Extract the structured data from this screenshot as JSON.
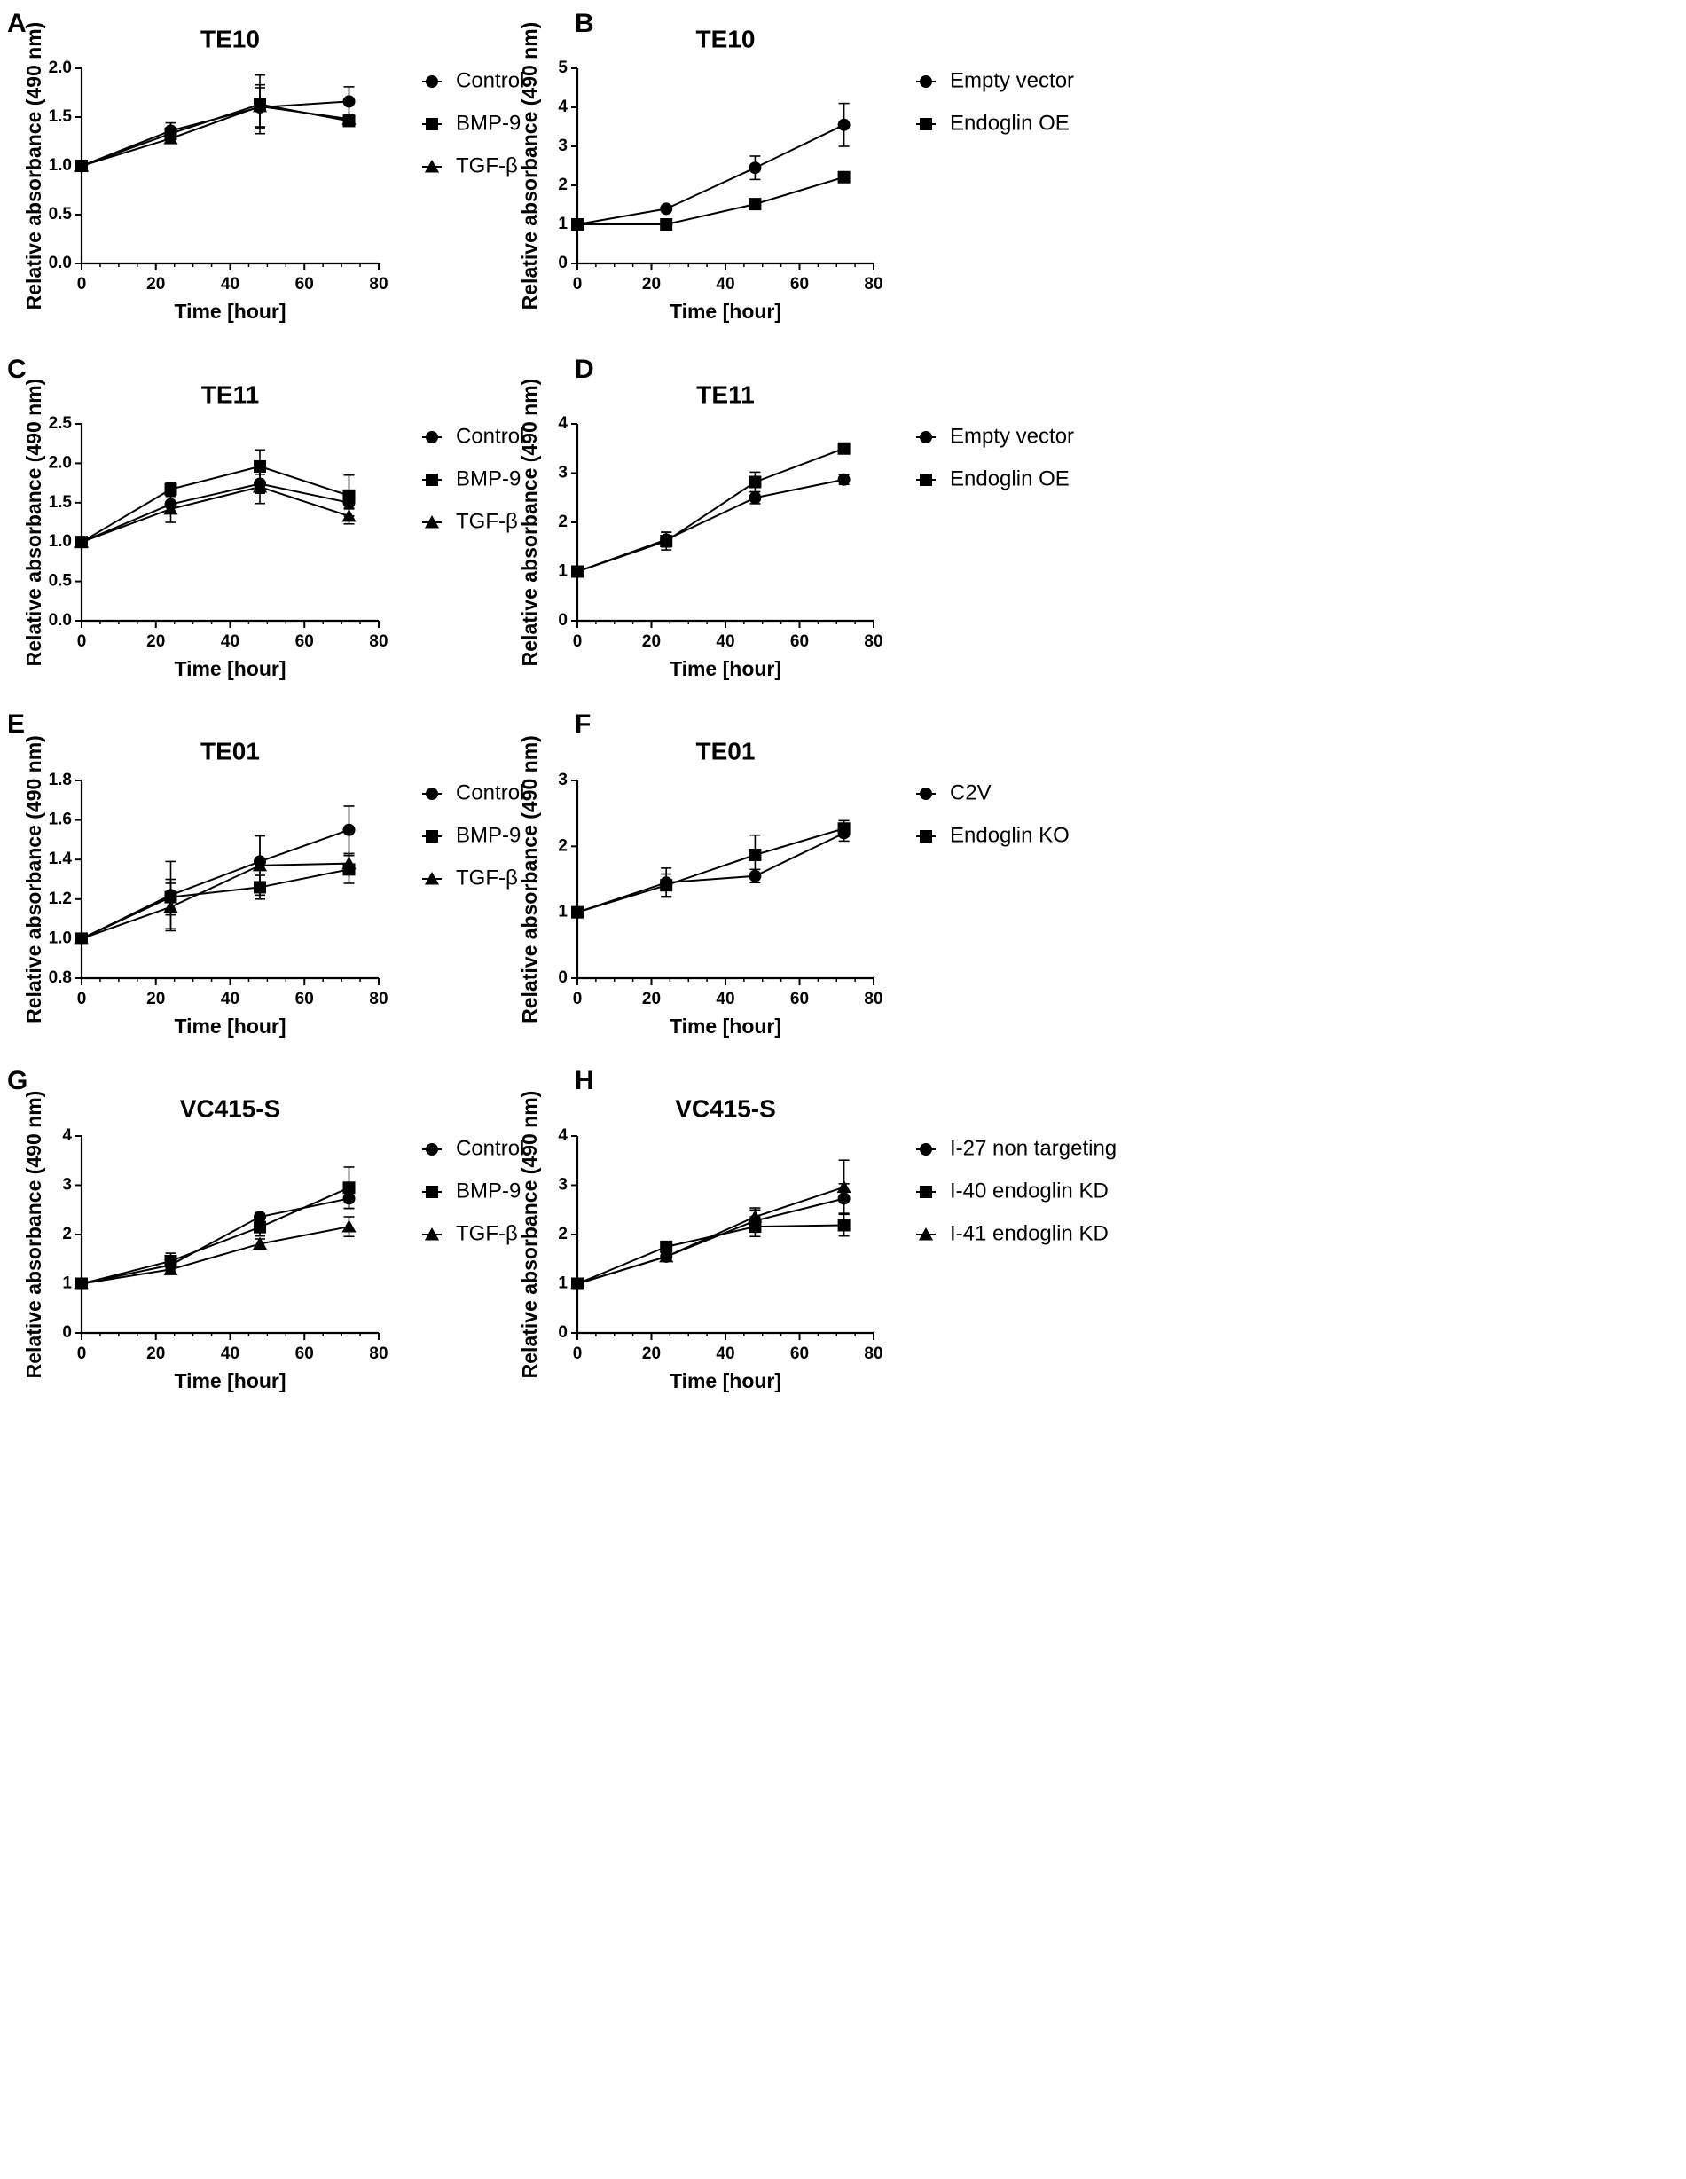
{
  "chart_data": [
    {
      "panel": "A",
      "title": "TE10",
      "type": "line",
      "xlabel": "Time [hour]",
      "ylabel": "Relative absorbance (490 nm)",
      "xlim": [
        0,
        80
      ],
      "xticks": [
        "0",
        "20",
        "40",
        "60",
        "80"
      ],
      "ylim": [
        0,
        2.0
      ],
      "yticks": [
        "0.0",
        "0.5",
        "1.0",
        "1.5",
        "2.0"
      ],
      "x": [
        0,
        24,
        48,
        72
      ],
      "series": [
        {
          "name": "Control",
          "marker": "circle",
          "values": [
            1.0,
            1.36,
            1.6,
            1.66
          ],
          "errors": [
            0.02,
            0.08,
            0.2,
            0.15
          ]
        },
        {
          "name": "BMP-9",
          "marker": "square",
          "values": [
            1.0,
            1.33,
            1.63,
            1.46
          ],
          "errors": [
            0.02,
            0.06,
            0.3,
            0.04
          ]
        },
        {
          "name": "TGF-β",
          "marker": "triangle",
          "values": [
            1.0,
            1.28,
            1.61,
            1.48
          ],
          "errors": [
            0.02,
            0.05,
            0.22,
            0.04
          ]
        }
      ]
    },
    {
      "panel": "B",
      "title": "TE10",
      "type": "line",
      "xlabel": "Time [hour]",
      "ylabel": "Relative absorbance (490 nm)",
      "xlim": [
        0,
        80
      ],
      "xticks": [
        "0",
        "20",
        "40",
        "60",
        "80"
      ],
      "ylim": [
        0,
        5
      ],
      "yticks": [
        "0",
        "1",
        "2",
        "3",
        "4",
        "5"
      ],
      "x": [
        0,
        24,
        48,
        72
      ],
      "series": [
        {
          "name": "Empty vector",
          "marker": "circle",
          "values": [
            1.0,
            1.4,
            2.45,
            3.55
          ],
          "errors": [
            0.03,
            0.05,
            0.3,
            0.55
          ]
        },
        {
          "name": "Endoglin OE",
          "marker": "square",
          "values": [
            1.0,
            1.0,
            1.52,
            2.21
          ],
          "errors": [
            0.03,
            0.03,
            0.1,
            0.05
          ]
        }
      ]
    },
    {
      "panel": "C",
      "title": "TE11",
      "type": "line",
      "xlabel": "Time [hour]",
      "ylabel": "Relative absorbance (490 nm)",
      "xlim": [
        0,
        80
      ],
      "xticks": [
        "0",
        "20",
        "40",
        "60",
        "80"
      ],
      "ylim": [
        0,
        2.5
      ],
      "yticks": [
        "0.0",
        "0.5",
        "1.0",
        "1.5",
        "2.0",
        "2.5"
      ],
      "x": [
        0,
        24,
        48,
        72
      ],
      "series": [
        {
          "name": "Control",
          "marker": "circle",
          "values": [
            1.0,
            1.48,
            1.74,
            1.5
          ],
          "errors": [
            0.02,
            0.1,
            0.12,
            0.08
          ]
        },
        {
          "name": "BMP-9",
          "marker": "square",
          "values": [
            1.0,
            1.67,
            1.96,
            1.59
          ],
          "errors": [
            0.02,
            0.08,
            0.21,
            0.26
          ]
        },
        {
          "name": "TGF-β",
          "marker": "triangle",
          "values": [
            1.0,
            1.42,
            1.7,
            1.33
          ],
          "errors": [
            0.02,
            0.17,
            0.21,
            0.1
          ]
        }
      ]
    },
    {
      "panel": "D",
      "title": "TE11",
      "type": "line",
      "xlabel": "Time [hour]",
      "ylabel": "Relative absorbance (490 nm)",
      "xlim": [
        0,
        80
      ],
      "xticks": [
        "0",
        "20",
        "40",
        "60",
        "80"
      ],
      "ylim": [
        0,
        4
      ],
      "yticks": [
        "0",
        "1",
        "2",
        "3",
        "4"
      ],
      "x": [
        0,
        24,
        48,
        72
      ],
      "series": [
        {
          "name": "Empty vector",
          "marker": "circle",
          "values": [
            1.0,
            1.65,
            2.5,
            2.87
          ],
          "errors": [
            0.03,
            0.15,
            0.12,
            0.1
          ]
        },
        {
          "name": "Endoglin OE",
          "marker": "square",
          "values": [
            1.0,
            1.62,
            2.82,
            3.5
          ],
          "errors": [
            0.03,
            0.18,
            0.2,
            0.04
          ]
        }
      ]
    },
    {
      "panel": "E",
      "title": "TE01",
      "type": "line",
      "xlabel": "Time [hour]",
      "ylabel": "Relative absorbance (490 nm)",
      "xlim": [
        0,
        80
      ],
      "xticks": [
        "0",
        "20",
        "40",
        "60",
        "80"
      ],
      "ylim": [
        0.8,
        1.8
      ],
      "yticks": [
        "0.8",
        "1.0",
        "1.2",
        "1.4",
        "1.6",
        "1.8"
      ],
      "x": [
        0,
        24,
        48,
        72
      ],
      "series": [
        {
          "name": "Control",
          "marker": "circle",
          "values": [
            1.0,
            1.22,
            1.39,
            1.55
          ],
          "errors": [
            0.01,
            0.17,
            0.13,
            0.12
          ]
        },
        {
          "name": "BMP-9",
          "marker": "square",
          "values": [
            1.0,
            1.21,
            1.26,
            1.35
          ],
          "errors": [
            0.01,
            0.09,
            0.06,
            0.07
          ]
        },
        {
          "name": "TGF-β",
          "marker": "triangle",
          "values": [
            1.0,
            1.16,
            1.37,
            1.38
          ],
          "errors": [
            0.01,
            0.12,
            0.15,
            0.05
          ]
        }
      ]
    },
    {
      "panel": "F",
      "title": "TE01",
      "type": "line",
      "xlabel": "Time [hour]",
      "ylabel": "Relative absorbance (490 nm)",
      "xlim": [
        0,
        80
      ],
      "xticks": [
        "0",
        "20",
        "40",
        "60",
        "80"
      ],
      "ylim": [
        0,
        3
      ],
      "yticks": [
        "0",
        "1",
        "2",
        "3"
      ],
      "x": [
        0,
        24,
        48,
        72
      ],
      "series": [
        {
          "name": "C2V",
          "marker": "circle",
          "values": [
            1.0,
            1.45,
            1.55,
            2.2
          ],
          "errors": [
            0.02,
            0.22,
            0.1,
            0.12
          ]
        },
        {
          "name": "Endoglin KO",
          "marker": "square",
          "values": [
            1.0,
            1.41,
            1.87,
            2.27
          ],
          "errors": [
            0.02,
            0.17,
            0.3,
            0.12
          ]
        }
      ]
    },
    {
      "panel": "G",
      "title": "VC415-S",
      "type": "line",
      "xlabel": "Time [hour]",
      "ylabel": "Relative absorbance (490 nm)",
      "xlim": [
        0,
        80
      ],
      "xticks": [
        "0",
        "20",
        "40",
        "60",
        "80"
      ],
      "ylim": [
        0,
        4
      ],
      "yticks": [
        "0",
        "1",
        "2",
        "3",
        "4"
      ],
      "x": [
        0,
        24,
        48,
        72
      ],
      "series": [
        {
          "name": "Control",
          "marker": "circle",
          "values": [
            1.0,
            1.38,
            2.36,
            2.73
          ],
          "errors": [
            0.02,
            0.08,
            0.06,
            0.2
          ]
        },
        {
          "name": "BMP-9",
          "marker": "square",
          "values": [
            1.0,
            1.46,
            2.15,
            2.95
          ],
          "errors": [
            0.02,
            0.16,
            0.18,
            0.42
          ]
        },
        {
          "name": "TGF-β",
          "marker": "triangle",
          "values": [
            1.0,
            1.29,
            1.81,
            2.16
          ],
          "errors": [
            0.02,
            0.08,
            0.1,
            0.2
          ]
        }
      ]
    },
    {
      "panel": "H",
      "title": "VC415-S",
      "type": "line",
      "xlabel": "Time [hour]",
      "ylabel": "Relative absorbance (490 nm)",
      "xlim": [
        0,
        80
      ],
      "xticks": [
        "0",
        "20",
        "40",
        "60",
        "80"
      ],
      "ylim": [
        0,
        4
      ],
      "yticks": [
        "0",
        "1",
        "2",
        "3",
        "4"
      ],
      "x": [
        0,
        24,
        48,
        72
      ],
      "series": [
        {
          "name": "I-27 non targeting",
          "marker": "circle",
          "values": [
            1.0,
            1.55,
            2.28,
            2.73
          ],
          "errors": [
            0.02,
            0.08,
            0.22,
            0.3
          ]
        },
        {
          "name": "I-40 endoglin KD",
          "marker": "square",
          "values": [
            1.0,
            1.75,
            2.16,
            2.19
          ],
          "errors": [
            0.02,
            0.05,
            0.2,
            0.22
          ]
        },
        {
          "name": "I-41 endoglin KD",
          "marker": "triangle",
          "values": [
            1.0,
            1.55,
            2.36,
            2.96
          ],
          "errors": [
            0.02,
            0.06,
            0.18,
            0.55
          ]
        }
      ]
    }
  ]
}
